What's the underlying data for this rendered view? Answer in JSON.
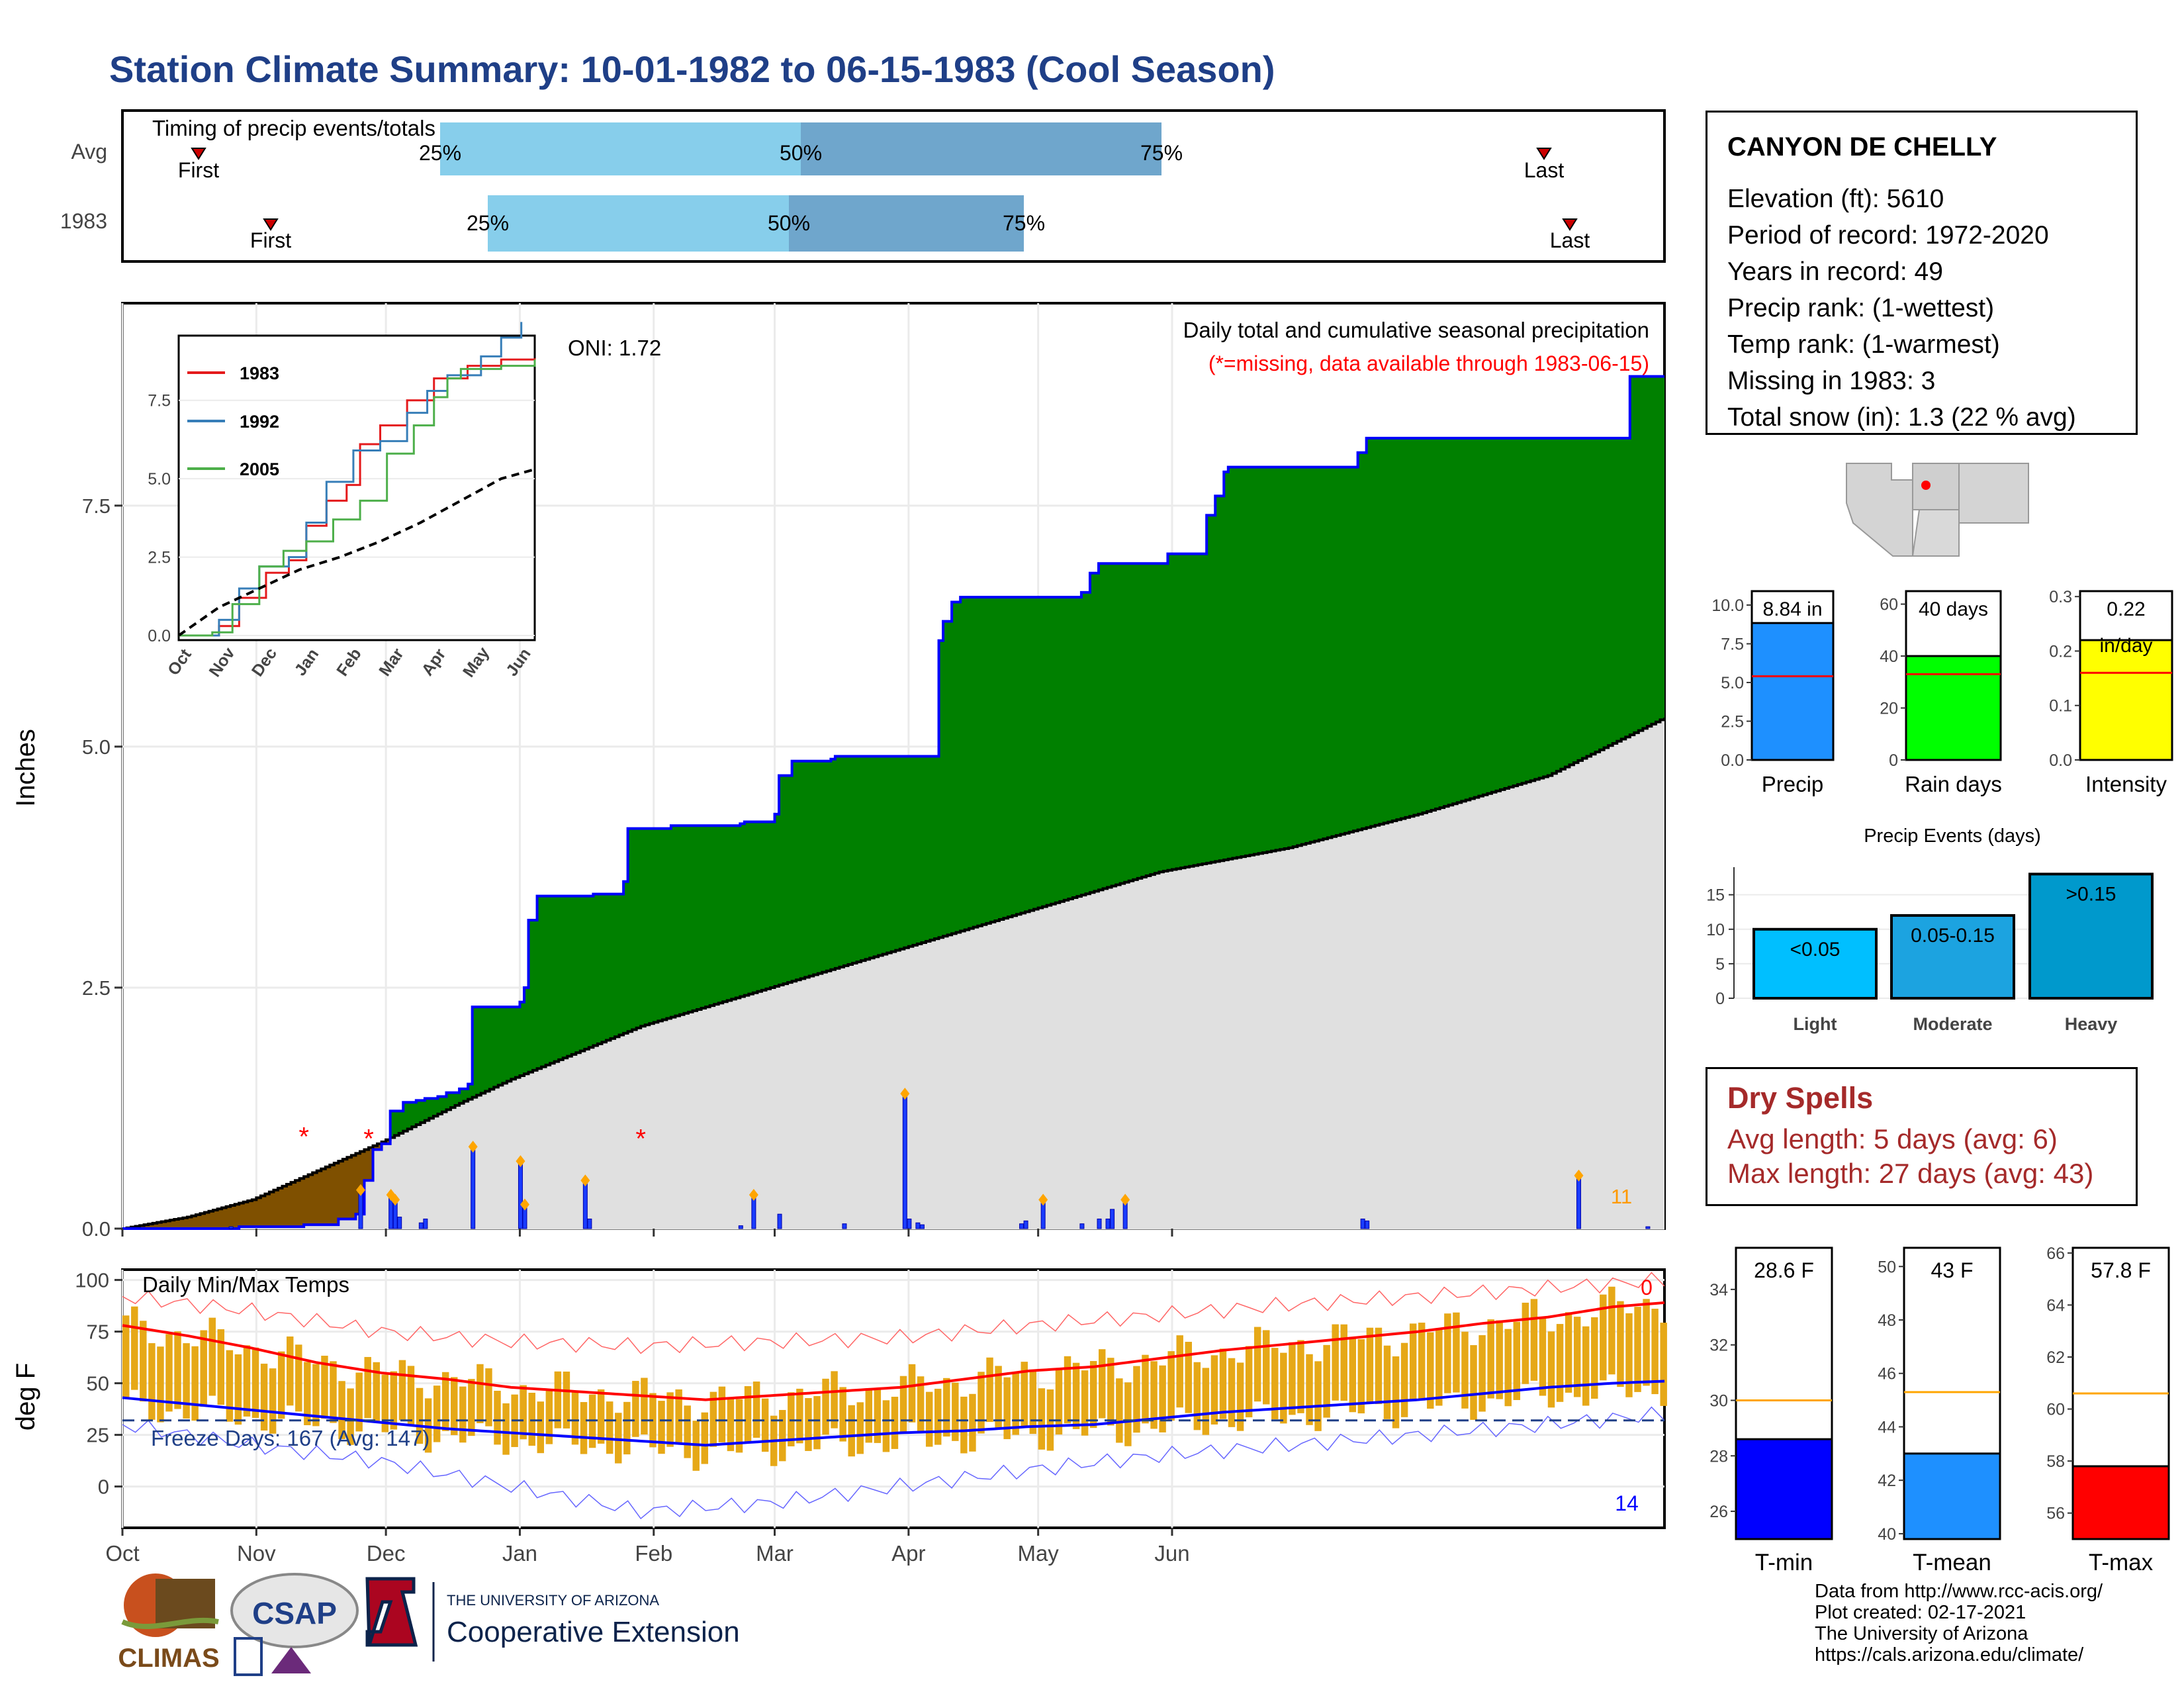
{
  "title": "Station Climate Summary: 10-01-1982 to 06-15-1983 (Cool Season)",
  "colors": {
    "title": "#1f3f87",
    "cumulative_avg_fill": "#e0e0e0",
    "above_normal_fill": "#008000",
    "below_normal_fill": "#7f5000",
    "precip_line": "#0000ff",
    "temp_bars": "#e6a817",
    "tmax_avg": "#ff0000",
    "tmin_avg": "#0000ff",
    "dry_spells": "#a52a2a",
    "timing_light": "#87ceeb",
    "timing_dark": "#6fa6cc"
  },
  "timing": {
    "title": "Timing of precip events/totals",
    "rows": [
      {
        "label": "Avg",
        "first_label": "First",
        "last_label": "Last",
        "q25_label": "25%",
        "q50_label": "50%",
        "q75_label": "75%"
      },
      {
        "label": "1983",
        "first_label": "First",
        "last_label": "Last",
        "q25_label": "25%",
        "q50_label": "50%",
        "q75_label": "75%"
      }
    ]
  },
  "precip_panel": {
    "ylabel": "Inches",
    "yticks": [
      "0.0",
      "2.5",
      "5.0",
      "7.5"
    ],
    "oni": "ONI: 1.72",
    "legend_title": "Daily total and cumulative seasonal precipitation",
    "missing_note": "(*=missing, data available through 1983-06-15)",
    "count_label": "11"
  },
  "inset": {
    "series": [
      "1983",
      "1992",
      "2005"
    ],
    "yticks": [
      "0.0",
      "2.5",
      "5.0",
      "7.5"
    ],
    "xticks": [
      "Oct",
      "Nov",
      "Dec",
      "Jan",
      "Feb",
      "Mar",
      "Apr",
      "May",
      "Jun"
    ]
  },
  "temp_panel": {
    "title": "Daily Min/Max Temps",
    "ylabel": "deg F",
    "yticks": [
      "0",
      "25",
      "50",
      "75",
      "100"
    ],
    "freeze_text": "Freeze Days: 167 (Avg: 147)",
    "top_count": "0",
    "bottom_count": "14",
    "xticks": [
      "Oct",
      "Nov",
      "Dec",
      "Jan",
      "Feb",
      "Mar",
      "Apr",
      "May",
      "Jun"
    ]
  },
  "station": {
    "name": "CANYON DE CHELLY",
    "lines": [
      "Elevation (ft): 5610",
      "Period of record: 1972-2020",
      "Years in record: 49",
      "Precip rank:  (1-wettest)",
      "Temp rank:  (1-warmest)",
      "Missing in 1983: 3",
      "Total snow (in): 1.3 (22 % avg)"
    ]
  },
  "summary_bars": [
    {
      "name": "Precip",
      "value_label": "8.84 in",
      "value": 8.84,
      "avg": 5.4,
      "yticks": [
        "0.0",
        "2.5",
        "5.0",
        "7.5",
        "10.0"
      ],
      "color": "#1e90ff"
    },
    {
      "name": "Rain days",
      "value_label": "40 days",
      "value": 40,
      "avg": 33,
      "yticks": [
        "0",
        "20",
        "40",
        "60"
      ],
      "color": "#00ff00"
    },
    {
      "name": "Intensity",
      "value_label": "0.22",
      "value_sub": "in/day",
      "value": 0.22,
      "avg": 0.16,
      "yticks": [
        "0.0",
        "0.1",
        "0.2",
        "0.3"
      ],
      "color": "#ffff00"
    }
  ],
  "events": {
    "title": "Precip Events (days)",
    "yticks": [
      "0",
      "5",
      "10",
      "15"
    ],
    "bars": [
      {
        "name": "Light",
        "label": "<0.05",
        "value": 10,
        "color": "#00bfff"
      },
      {
        "name": "Moderate",
        "label": "0.05-0.15",
        "value": 12,
        "color": "#1ca3e0"
      },
      {
        "name": "Heavy",
        "label": ">0.15",
        "value": 18,
        "color": "#0099cc"
      }
    ]
  },
  "dry_spells": {
    "title": "Dry Spells",
    "avg_length": "Avg length: 5 days (avg: 6)",
    "max_length": "Max length: 27 days (avg: 43)"
  },
  "temp_bars": [
    {
      "name": "T-min",
      "value_label": "28.6 F",
      "value": 28.6,
      "avg": 30.0,
      "yticks": [
        "26",
        "28",
        "30",
        "32",
        "34"
      ],
      "color": "#0000ff"
    },
    {
      "name": "T-mean",
      "value_label": "43 F",
      "value": 43.0,
      "avg": 45.3,
      "yticks": [
        "40",
        "42",
        "44",
        "46",
        "48",
        "50"
      ],
      "color": "#1e90ff"
    },
    {
      "name": "T-max",
      "value_label": "57.8 F",
      "value": 57.8,
      "avg": 60.6,
      "yticks": [
        "56",
        "58",
        "60",
        "62",
        "64",
        "66"
      ],
      "color": "#ff0000"
    }
  ],
  "credits": [
    "Data from http://www.rcc-acis.org/",
    "Plot created: 02-17-2021",
    "The University of Arizona",
    "https://cals.arizona.edu/climate/"
  ],
  "logos": {
    "climas": "CLIMAS",
    "csap": "CSAP",
    "ua_small": "THE UNIVERSITY OF ARIZONA",
    "ua_big": "Cooperative Extension"
  },
  "chart_data": {
    "type": "area",
    "title": "Daily total and cumulative seasonal precipitation",
    "ylabel": "Inches",
    "ylim": [
      0,
      9.6
    ],
    "x_months": [
      "Oct",
      "Nov",
      "Dec",
      "Jan",
      "Feb",
      "Mar",
      "Apr",
      "May",
      "Jun"
    ],
    "cumulative_1983_steps": [
      [
        0,
        0.0
      ],
      [
        26,
        0.0
      ],
      [
        27,
        0.02
      ],
      [
        42,
        0.04
      ],
      [
        50,
        0.1
      ],
      [
        54,
        0.15
      ],
      [
        56,
        0.5
      ],
      [
        58,
        0.82
      ],
      [
        60,
        0.88
      ],
      [
        62,
        1.22
      ],
      [
        65,
        1.31
      ],
      [
        68,
        1.33
      ],
      [
        70,
        1.35
      ],
      [
        73,
        1.37
      ],
      [
        75,
        1.41
      ],
      [
        78,
        1.45
      ],
      [
        80,
        1.5
      ],
      [
        81,
        2.3
      ],
      [
        92,
        2.35
      ],
      [
        93,
        2.5
      ],
      [
        94,
        3.2
      ],
      [
        96,
        3.45
      ],
      [
        109,
        3.47
      ],
      [
        116,
        3.6
      ],
      [
        117,
        4.15
      ],
      [
        127,
        4.18
      ],
      [
        143,
        4.2
      ],
      [
        144,
        4.22
      ],
      [
        151,
        4.3
      ],
      [
        152,
        4.7
      ],
      [
        155,
        4.85
      ],
      [
        164,
        4.87
      ],
      [
        165,
        4.9
      ],
      [
        189,
        6.1
      ],
      [
        190,
        6.3
      ],
      [
        192,
        6.5
      ],
      [
        194,
        6.55
      ],
      [
        222,
        6.6
      ],
      [
        224,
        6.8
      ],
      [
        226,
        6.9
      ],
      [
        242,
        7.0
      ],
      [
        251,
        7.4
      ],
      [
        253,
        7.6
      ],
      [
        255,
        7.85
      ],
      [
        256,
        7.9
      ],
      [
        286,
        8.05
      ],
      [
        288,
        8.2
      ],
      [
        349,
        8.84
      ],
      [
        350,
        8.84
      ],
      [
        357,
        8.84
      ]
    ],
    "cumulative_avg": [
      [
        0,
        0.0
      ],
      [
        15,
        0.12
      ],
      [
        30,
        0.3
      ],
      [
        60,
        0.9
      ],
      [
        78,
        1.3
      ],
      [
        90,
        1.55
      ],
      [
        120,
        2.1
      ],
      [
        150,
        2.5
      ],
      [
        180,
        2.9
      ],
      [
        210,
        3.3
      ],
      [
        240,
        3.7
      ],
      [
        270,
        3.95
      ],
      [
        300,
        4.3
      ],
      [
        330,
        4.7
      ],
      [
        357,
        5.3
      ]
    ],
    "daily_precip": [
      [
        25,
        0.02
      ],
      [
        55,
        0.4
      ],
      [
        62,
        0.35
      ],
      [
        63,
        0.3
      ],
      [
        64,
        0.12
      ],
      [
        69,
        0.06
      ],
      [
        70,
        0.1
      ],
      [
        81,
        0.85
      ],
      [
        92,
        0.7
      ],
      [
        93,
        0.25
      ],
      [
        107,
        0.5
      ],
      [
        108,
        0.1
      ],
      [
        143,
        0.03
      ],
      [
        146,
        0.35
      ],
      [
        152,
        0.15
      ],
      [
        167,
        0.05
      ],
      [
        181,
        1.4
      ],
      [
        182,
        0.1
      ],
      [
        184,
        0.06
      ],
      [
        185,
        0.04
      ],
      [
        208,
        0.05
      ],
      [
        209,
        0.08
      ],
      [
        213,
        0.3
      ],
      [
        222,
        0.05
      ],
      [
        226,
        0.1
      ],
      [
        228,
        0.1
      ],
      [
        229,
        0.2
      ],
      [
        232,
        0.3
      ],
      [
        287,
        0.1
      ],
      [
        288,
        0.08
      ],
      [
        337,
        0.55
      ],
      [
        353,
        0.02
      ]
    ],
    "missing_markers": [
      [
        42,
        1.0
      ],
      [
        57,
        0.98
      ],
      [
        120,
        0.98
      ]
    ],
    "inset": {
      "type": "line",
      "series": [
        {
          "name": "1983",
          "x": [
            0,
            30,
            45,
            65,
            82,
            95,
            110,
            125,
            135,
            150,
            170,
            190,
            215,
            240,
            265
          ],
          "y": [
            0,
            0.3,
            1.2,
            2.0,
            2.4,
            3.5,
            4.3,
            4.8,
            6.1,
            6.7,
            7.5,
            8.2,
            8.6,
            8.8,
            8.84
          ]
        },
        {
          "name": "1992",
          "x": [
            0,
            30,
            45,
            60,
            82,
            95,
            110,
            130,
            150,
            170,
            185,
            200,
            225,
            240,
            255
          ],
          "y": [
            0,
            0.5,
            1.5,
            2.2,
            2.5,
            3.6,
            4.9,
            5.9,
            6.2,
            7.1,
            7.8,
            8.3,
            8.9,
            9.5,
            10.0
          ]
        },
        {
          "name": "2005",
          "x": [
            0,
            25,
            40,
            60,
            78,
            95,
            115,
            135,
            155,
            175,
            190,
            200,
            210,
            240,
            265
          ],
          "y": [
            0,
            0.1,
            1.0,
            2.2,
            2.7,
            3.0,
            3.7,
            4.3,
            5.8,
            6.7,
            7.6,
            8.2,
            8.5,
            8.6,
            8.8
          ]
        },
        {
          "name": "avg",
          "x": [
            0,
            30,
            60,
            90,
            120,
            150,
            180,
            210,
            240,
            265
          ],
          "y": [
            0,
            0.9,
            1.5,
            2.1,
            2.5,
            3.0,
            3.6,
            4.3,
            5.0,
            5.3
          ]
        }
      ],
      "ylim": [
        0,
        9.5
      ]
    },
    "temps": {
      "ylim": [
        -20,
        105
      ],
      "tmax_avg": [
        [
          0,
          78
        ],
        [
          15,
          73
        ],
        [
          30,
          67
        ],
        [
          45,
          60
        ],
        [
          60,
          55
        ],
        [
          75,
          52
        ],
        [
          90,
          48
        ],
        [
          105,
          46
        ],
        [
          120,
          44
        ],
        [
          135,
          42
        ],
        [
          150,
          44
        ],
        [
          165,
          46
        ],
        [
          180,
          48
        ],
        [
          195,
          52
        ],
        [
          210,
          56
        ],
        [
          225,
          58
        ],
        [
          240,
          62
        ],
        [
          255,
          66
        ],
        [
          270,
          69
        ],
        [
          285,
          72
        ],
        [
          300,
          75
        ],
        [
          315,
          79
        ],
        [
          330,
          82
        ],
        [
          345,
          87
        ],
        [
          357,
          89
        ]
      ],
      "tmin_avg": [
        [
          0,
          43
        ],
        [
          15,
          40
        ],
        [
          30,
          37
        ],
        [
          45,
          34
        ],
        [
          60,
          31
        ],
        [
          75,
          28
        ],
        [
          90,
          26
        ],
        [
          105,
          24
        ],
        [
          120,
          22
        ],
        [
          135,
          20
        ],
        [
          150,
          22
        ],
        [
          165,
          24
        ],
        [
          180,
          26
        ],
        [
          195,
          27
        ],
        [
          210,
          29
        ],
        [
          225,
          30
        ],
        [
          240,
          33
        ],
        [
          255,
          36
        ],
        [
          270,
          38
        ],
        [
          285,
          40
        ],
        [
          300,
          42
        ],
        [
          315,
          45
        ],
        [
          330,
          48
        ],
        [
          345,
          50
        ],
        [
          357,
          51
        ]
      ],
      "record_high": [
        [
          0,
          92
        ],
        [
          30,
          85
        ],
        [
          60,
          75
        ],
        [
          90,
          70
        ],
        [
          120,
          68
        ],
        [
          150,
          70
        ],
        [
          180,
          72
        ],
        [
          210,
          78
        ],
        [
          240,
          83
        ],
        [
          270,
          88
        ],
        [
          300,
          92
        ],
        [
          330,
          96
        ],
        [
          357,
          100
        ]
      ],
      "record_low": [
        [
          0,
          30
        ],
        [
          30,
          20
        ],
        [
          60,
          12
        ],
        [
          90,
          0
        ],
        [
          120,
          -12
        ],
        [
          150,
          -8
        ],
        [
          180,
          0
        ],
        [
          210,
          8
        ],
        [
          240,
          15
        ],
        [
          270,
          20
        ],
        [
          300,
          25
        ],
        [
          330,
          30
        ],
        [
          357,
          35
        ]
      ],
      "freeze_line": 32
    }
  }
}
